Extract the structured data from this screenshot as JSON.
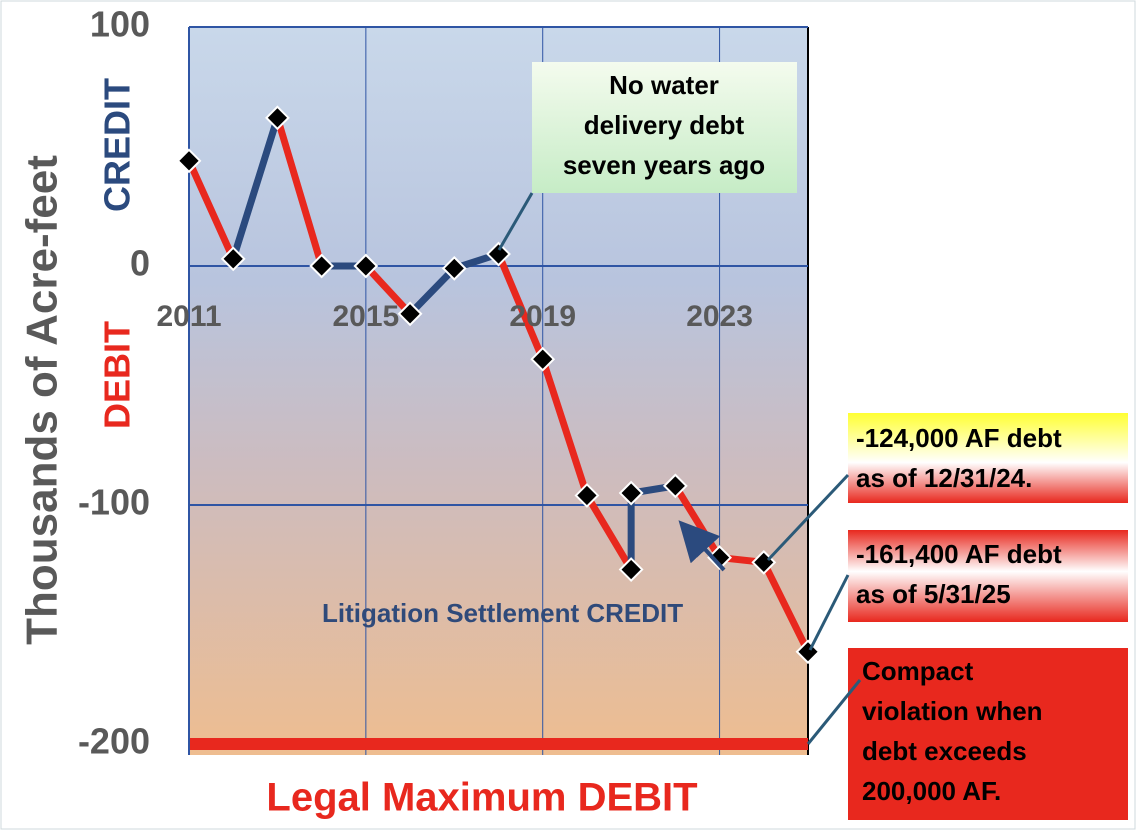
{
  "chart_data": {
    "type": "line",
    "y_axis_label": "Thousands of Acre-feet",
    "credit_label": "CREDIT",
    "debit_label": "DEBIT",
    "x": [
      2011,
      2012,
      2013,
      2014,
      2015,
      2016,
      2017,
      2018,
      2019,
      2020,
      2021,
      2021,
      2022,
      2023,
      2024,
      2025
    ],
    "values": [
      44,
      3,
      62,
      0,
      0,
      -20,
      -1,
      5,
      -39,
      -96,
      -127,
      -95,
      -92,
      -122,
      -124,
      -161.4
    ],
    "up_color": "#2b4a7e",
    "down_color": "#e8281e",
    "xlim": [
      2011,
      2025
    ],
    "ylim": [
      -200,
      100
    ],
    "xticks": [
      2011,
      2015,
      2019,
      2023
    ],
    "yticks": [
      100,
      0,
      -100,
      -200
    ],
    "grid": true,
    "grid_color": "#2f55a4",
    "limit_line": -200,
    "limit_color": "#e8281e",
    "limit_label": "Legal Maximum DEBIT",
    "settlement_label": "Litigation Settlement CREDIT",
    "annotations": [
      {
        "lines": [
          "No water",
          "delivery debt",
          "seven years ago"
        ]
      },
      {
        "lines": [
          "-124,000 AF debt",
          "as of 12/31/24."
        ]
      },
      {
        "lines": [
          "-161,400 AF debt",
          "as of 5/31/25"
        ]
      },
      {
        "lines": [
          "Compact",
          "violation when",
          "debt exceeds",
          "200,000 AF."
        ]
      }
    ]
  }
}
